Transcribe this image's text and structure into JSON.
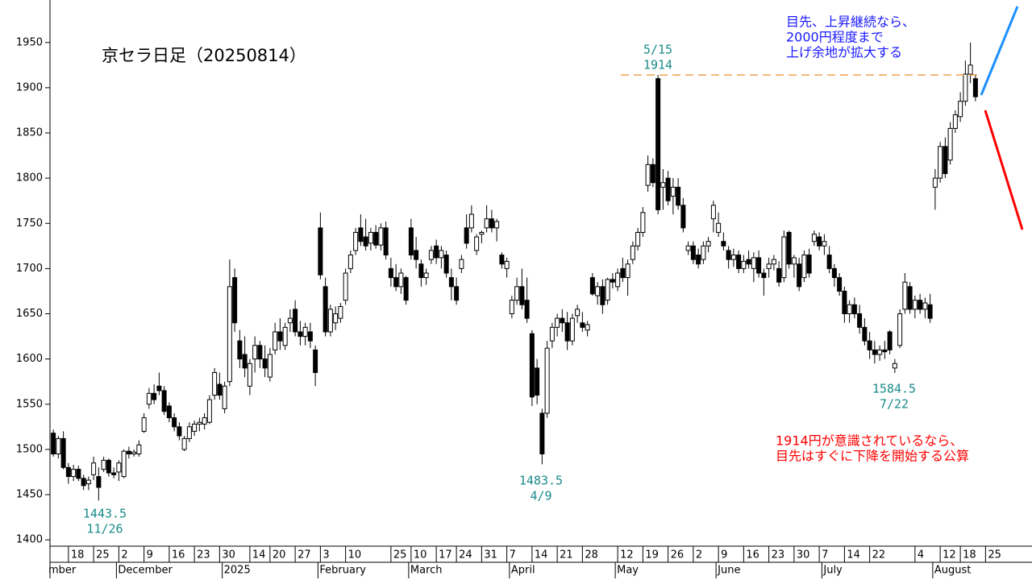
{
  "chart_data": {
    "type": "candlestick",
    "title": "京セラ日足（20250814）",
    "ylim": [
      1393,
      1997
    ],
    "yticks": [
      1400,
      1450,
      1500,
      1550,
      1600,
      1650,
      1700,
      1750,
      1800,
      1850,
      1900,
      1950
    ],
    "up_color": "#ffffff",
    "down_color": "#000000",
    "level": 1914,
    "level_color": "#f0a050",
    "categories": [
      null,
      null,
      null,
      "18",
      null,
      null,
      null,
      null,
      "25",
      null,
      null,
      null,
      null,
      "2",
      null,
      null,
      null,
      null,
      "9",
      null,
      null,
      null,
      null,
      "16",
      null,
      null,
      null,
      null,
      "23",
      null,
      null,
      null,
      null,
      "30",
      null,
      null,
      null,
      null,
      null,
      "14",
      null,
      null,
      null,
      "20",
      null,
      null,
      null,
      null,
      "27",
      null,
      null,
      null,
      null,
      "3",
      null,
      null,
      null,
      null,
      "10",
      null,
      null,
      null,
      null,
      null,
      null,
      null,
      null,
      "25",
      null,
      null,
      null,
      "10",
      null,
      null,
      null,
      null,
      "17",
      null,
      null,
      null,
      "24",
      null,
      null,
      null,
      null,
      "31",
      null,
      null,
      null,
      null,
      "7",
      null,
      null,
      null,
      null,
      "14",
      null,
      null,
      null,
      null,
      "21",
      null,
      null,
      null,
      null,
      "28",
      null,
      null,
      null,
      null,
      null,
      null,
      "12",
      null,
      null,
      null,
      null,
      "19",
      null,
      null,
      null,
      null,
      "26",
      null,
      null,
      null,
      null,
      "2",
      null,
      null,
      null,
      null,
      "9",
      null,
      null,
      null,
      null,
      "16",
      null,
      null,
      null,
      null,
      "23",
      null,
      null,
      null,
      null,
      "30",
      null,
      null,
      null,
      null,
      "7",
      null,
      null,
      null,
      null,
      "14",
      null,
      null,
      null,
      null,
      "22",
      null,
      null,
      null,
      null,
      null,
      null,
      null,
      null,
      "4",
      null,
      null,
      null,
      null,
      "12",
      null,
      null,
      null,
      "18",
      null,
      null,
      null,
      null,
      "25",
      null,
      null,
      null,
      null
    ],
    "months": [
      {
        "label": "mber",
        "start": 0
      },
      {
        "label": "December",
        "start": 13
      },
      {
        "label": "2025",
        "start": 34
      },
      {
        "label": "February",
        "start": 53
      },
      {
        "label": "March",
        "start": 71
      },
      {
        "label": "April",
        "start": 91
      },
      {
        "label": "May",
        "start": 112
      },
      {
        "label": "June",
        "start": 132
      },
      {
        "label": "July",
        "start": 153
      },
      {
        "label": "August",
        "start": 175
      }
    ],
    "ohlc": [
      [
        1518,
        1522,
        1492,
        1495
      ],
      [
        1495,
        1515,
        1490,
        1512
      ],
      [
        1512,
        1520,
        1478,
        1480
      ],
      [
        1480,
        1485,
        1462,
        1470
      ],
      [
        1470,
        1483,
        1465,
        1478
      ],
      [
        1478,
        1482,
        1465,
        1468
      ],
      [
        1468,
        1472,
        1455,
        1460
      ],
      [
        1462,
        1470,
        1455,
        1466
      ],
      [
        1472,
        1492,
        1466,
        1485
      ],
      [
        1470,
        1480,
        1443.5,
        1458
      ],
      [
        1478,
        1492,
        1475,
        1488
      ],
      [
        1488,
        1490,
        1470,
        1474
      ],
      [
        1474,
        1480,
        1468,
        1472
      ],
      [
        1475,
        1488,
        1465,
        1485
      ],
      [
        1470,
        1500,
        1468,
        1498
      ],
      [
        1498,
        1503,
        1490,
        1495
      ],
      [
        1495,
        1500,
        1492,
        1497
      ],
      [
        1495,
        1510,
        1492,
        1505
      ],
      [
        1520,
        1540,
        1518,
        1535
      ],
      [
        1550,
        1568,
        1545,
        1562
      ],
      [
        1562,
        1572,
        1550,
        1555
      ],
      [
        1570,
        1585,
        1560,
        1565
      ],
      [
        1565,
        1570,
        1538,
        1542
      ],
      [
        1548,
        1552,
        1530,
        1535
      ],
      [
        1535,
        1540,
        1520,
        1525
      ],
      [
        1525,
        1530,
        1510,
        1515
      ],
      [
        1500,
        1515,
        1498,
        1512
      ],
      [
        1512,
        1530,
        1508,
        1525
      ],
      [
        1520,
        1532,
        1515,
        1528
      ],
      [
        1528,
        1535,
        1520,
        1530
      ],
      [
        1528,
        1540,
        1522,
        1535
      ],
      [
        1530,
        1560,
        1528,
        1555
      ],
      [
        1560,
        1590,
        1555,
        1585
      ],
      [
        1572,
        1585,
        1555,
        1560
      ],
      [
        1545,
        1575,
        1540,
        1570
      ],
      [
        1575,
        1710,
        1570,
        1680
      ],
      [
        1690,
        1700,
        1630,
        1640
      ],
      [
        1620,
        1632,
        1590,
        1600
      ],
      [
        1605,
        1625,
        1580,
        1590
      ],
      [
        1570,
        1600,
        1560,
        1595
      ],
      [
        1600,
        1625,
        1585,
        1615
      ],
      [
        1615,
        1620,
        1590,
        1600
      ],
      [
        1600,
        1615,
        1580,
        1590
      ],
      [
        1580,
        1612,
        1575,
        1605
      ],
      [
        1610,
        1640,
        1605,
        1630
      ],
      [
        1630,
        1645,
        1610,
        1620
      ],
      [
        1615,
        1640,
        1610,
        1635
      ],
      [
        1640,
        1655,
        1630,
        1645
      ],
      [
        1655,
        1665,
        1625,
        1630
      ],
      [
        1630,
        1642,
        1615,
        1625
      ],
      [
        1625,
        1640,
        1615,
        1635
      ],
      [
        1630,
        1640,
        1612,
        1620
      ],
      [
        1610,
        1615,
        1570,
        1585
      ],
      [
        1745,
        1762,
        1688,
        1693
      ],
      [
        1680,
        1690,
        1625,
        1630
      ],
      [
        1630,
        1660,
        1625,
        1655
      ],
      [
        1640,
        1658,
        1632,
        1650
      ],
      [
        1645,
        1662,
        1640,
        1658
      ],
      [
        1665,
        1700,
        1660,
        1695
      ],
      [
        1700,
        1720,
        1695,
        1715
      ],
      [
        1720,
        1745,
        1715,
        1740
      ],
      [
        1745,
        1760,
        1725,
        1730
      ],
      [
        1735,
        1755,
        1720,
        1725
      ],
      [
        1728,
        1745,
        1720,
        1740
      ],
      [
        1740,
        1748,
        1722,
        1726
      ],
      [
        1726,
        1750,
        1720,
        1745
      ],
      [
        1745,
        1752,
        1710,
        1715
      ],
      [
        1700,
        1712,
        1680,
        1690
      ],
      [
        1690,
        1705,
        1675,
        1680
      ],
      [
        1680,
        1700,
        1672,
        1695
      ],
      [
        1690,
        1692,
        1660,
        1665
      ],
      [
        1745,
        1755,
        1710,
        1715
      ],
      [
        1720,
        1735,
        1700,
        1710
      ],
      [
        1705,
        1710,
        1680,
        1690
      ],
      [
        1690,
        1700,
        1682,
        1695
      ],
      [
        1710,
        1725,
        1705,
        1720
      ],
      [
        1725,
        1732,
        1705,
        1712
      ],
      [
        1712,
        1725,
        1700,
        1720
      ],
      [
        1715,
        1720,
        1690,
        1695
      ],
      [
        1690,
        1700,
        1665,
        1680
      ],
      [
        1680,
        1690,
        1660,
        1665
      ],
      [
        1700,
        1715,
        1695,
        1710
      ],
      [
        1745,
        1760,
        1722,
        1728
      ],
      [
        1745,
        1770,
        1740,
        1760
      ],
      [
        1720,
        1738,
        1715,
        1735
      ],
      [
        1738,
        1742,
        1728,
        1740
      ],
      [
        1745,
        1770,
        1740,
        1755
      ],
      [
        1755,
        1765,
        1740,
        1745
      ],
      [
        1745,
        1755,
        1730,
        1752
      ],
      [
        1715,
        1718,
        1700,
        1705
      ],
      [
        1700,
        1712,
        1690,
        1708
      ],
      [
        1650,
        1670,
        1645,
        1665
      ],
      [
        1665,
        1690,
        1660,
        1680
      ],
      [
        1680,
        1700,
        1655,
        1660
      ],
      [
        1665,
        1690,
        1640,
        1645
      ],
      [
        1628,
        1632,
        1548,
        1558
      ],
      [
        1590,
        1600,
        1550,
        1560
      ],
      [
        1540,
        1545,
        1483.5,
        1495
      ],
      [
        1540,
        1620,
        1535,
        1612
      ],
      [
        1620,
        1640,
        1612,
        1635
      ],
      [
        1635,
        1650,
        1625,
        1645
      ],
      [
        1645,
        1655,
        1630,
        1640
      ],
      [
        1640,
        1652,
        1610,
        1620
      ],
      [
        1620,
        1650,
        1615,
        1645
      ],
      [
        1648,
        1660,
        1640,
        1655
      ],
      [
        1640,
        1652,
        1630,
        1635
      ],
      [
        1632,
        1642,
        1625,
        1638
      ],
      [
        1690,
        1695,
        1670,
        1672
      ],
      [
        1670,
        1685,
        1660,
        1680
      ],
      [
        1680,
        1688,
        1650,
        1660
      ],
      [
        1665,
        1690,
        1660,
        1688
      ],
      [
        1688,
        1695,
        1678,
        1685
      ],
      [
        1680,
        1700,
        1675,
        1695
      ],
      [
        1700,
        1712,
        1685,
        1690
      ],
      [
        1690,
        1710,
        1670,
        1705
      ],
      [
        1710,
        1730,
        1705,
        1725
      ],
      [
        1725,
        1745,
        1720,
        1740
      ],
      [
        1740,
        1768,
        1735,
        1762
      ],
      [
        1792,
        1825,
        1785,
        1815
      ],
      [
        1815,
        1822,
        1790,
        1795
      ],
      [
        1910,
        1914,
        1760,
        1765
      ],
      [
        1790,
        1810,
        1765,
        1795
      ],
      [
        1800,
        1808,
        1770,
        1775
      ],
      [
        1780,
        1800,
        1760,
        1790
      ],
      [
        1790,
        1800,
        1765,
        1770
      ],
      [
        1770,
        1778,
        1740,
        1745
      ],
      [
        1720,
        1730,
        1715,
        1725
      ],
      [
        1725,
        1730,
        1705,
        1710
      ],
      [
        1715,
        1722,
        1700,
        1705
      ],
      [
        1710,
        1730,
        1705,
        1725
      ],
      [
        1725,
        1735,
        1718,
        1730
      ],
      [
        1755,
        1775,
        1740,
        1770
      ],
      [
        1740,
        1762,
        1735,
        1750
      ],
      [
        1730,
        1740,
        1720,
        1725
      ],
      [
        1720,
        1725,
        1700,
        1710
      ],
      [
        1710,
        1722,
        1702,
        1715
      ],
      [
        1715,
        1720,
        1695,
        1700
      ],
      [
        1700,
        1715,
        1695,
        1708
      ],
      [
        1710,
        1720,
        1700,
        1705
      ],
      [
        1700,
        1718,
        1685,
        1712
      ],
      [
        1712,
        1720,
        1690,
        1695
      ],
      [
        1695,
        1700,
        1670,
        1690
      ],
      [
        1700,
        1712,
        1690,
        1705
      ],
      [
        1705,
        1715,
        1698,
        1710
      ],
      [
        1700,
        1708,
        1680,
        1685
      ],
      [
        1690,
        1742,
        1685,
        1735
      ],
      [
        1740,
        1742,
        1700,
        1705
      ],
      [
        1705,
        1715,
        1690,
        1712
      ],
      [
        1705,
        1712,
        1675,
        1680
      ],
      [
        1690,
        1720,
        1685,
        1715
      ],
      [
        1715,
        1722,
        1690,
        1695
      ],
      [
        1730,
        1742,
        1725,
        1738
      ],
      [
        1735,
        1740,
        1720,
        1725
      ],
      [
        1725,
        1738,
        1715,
        1730
      ],
      [
        1715,
        1725,
        1695,
        1700
      ],
      [
        1700,
        1705,
        1680,
        1690
      ],
      [
        1690,
        1695,
        1670,
        1675
      ],
      [
        1675,
        1680,
        1640,
        1650
      ],
      [
        1650,
        1665,
        1640,
        1660
      ],
      [
        1660,
        1668,
        1645,
        1650
      ],
      [
        1650,
        1660,
        1628,
        1635
      ],
      [
        1635,
        1645,
        1615,
        1620
      ],
      [
        1620,
        1630,
        1600,
        1610
      ],
      [
        1610,
        1620,
        1595,
        1605
      ],
      [
        1605,
        1615,
        1598,
        1610
      ],
      [
        1610,
        1620,
        1600,
        1608
      ],
      [
        1630,
        1632,
        1605,
        1610
      ],
      [
        1590,
        1600,
        1584.5,
        1595
      ],
      [
        1615,
        1655,
        1612,
        1650
      ],
      [
        1655,
        1695,
        1650,
        1685
      ],
      [
        1680,
        1685,
        1650,
        1655
      ],
      [
        1655,
        1670,
        1645,
        1665
      ],
      [
        1665,
        1672,
        1650,
        1655
      ],
      [
        1655,
        1668,
        1645,
        1662
      ],
      [
        1660,
        1672,
        1640,
        1645
      ],
      [
        1790,
        1810,
        1765,
        1800
      ],
      [
        1800,
        1840,
        1795,
        1835
      ],
      [
        1835,
        1845,
        1800,
        1805
      ],
      [
        1820,
        1862,
        1815,
        1855
      ],
      [
        1855,
        1875,
        1850,
        1870
      ],
      [
        1868,
        1895,
        1862,
        1885
      ],
      [
        1885,
        1930,
        1880,
        1915
      ],
      [
        1915,
        1950,
        1905,
        1925
      ],
      [
        1910,
        1915,
        1885,
        1890
      ],
      null,
      null,
      null,
      null,
      null,
      null,
      null,
      null,
      null,
      null,
      null
    ],
    "annotations": [
      {
        "lines": [
          "5/15",
          "1914"
        ]
      },
      {
        "lines": [
          "1443.5",
          "11/26"
        ]
      },
      {
        "lines": [
          "1483.5",
          "4/9"
        ]
      },
      {
        "lines": [
          "1584.5",
          "7/22"
        ]
      }
    ],
    "notes": [
      {
        "color": "#1a1aff",
        "lines": [
          "目先、上昇継続なら、",
          "2000円程度まで",
          "上げ余地が拡大する"
        ]
      },
      {
        "color": "#ff0000",
        "lines": [
          "1914円が意識されているなら、",
          "目先はすぐに下降を開始する公算"
        ]
      }
    ]
  }
}
